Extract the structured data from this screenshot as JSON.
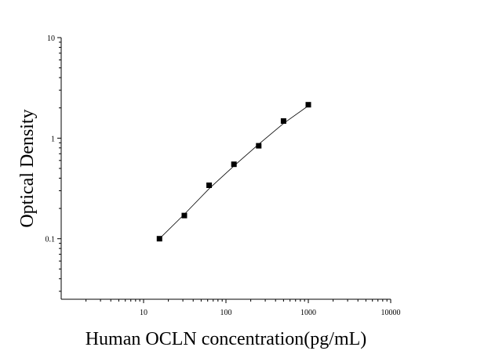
{
  "chart_data": {
    "type": "scatter",
    "title": "",
    "xlabel": "Human OCLN concentration(pg/mL)",
    "ylabel": "Optical Density",
    "x_scale": "log",
    "y_scale": "log",
    "xlim": [
      1,
      10000
    ],
    "ylim": [
      0.025,
      10
    ],
    "x_ticks": [
      10,
      100,
      1000,
      10000
    ],
    "x_tick_labels": [
      "10",
      "100",
      "1000",
      "10000"
    ],
    "y_ticks": [
      0.1,
      1,
      10
    ],
    "y_tick_labels": [
      "0.1",
      "1",
      "10"
    ],
    "grid": false,
    "legend": "none",
    "series": [
      {
        "x": [
          15.6,
          31.25,
          62.5,
          125,
          250,
          500,
          1000
        ],
        "y": [
          0.1,
          0.17,
          0.34,
          0.55,
          0.84,
          1.48,
          2.15
        ]
      }
    ],
    "fit_line": {
      "x": [
        15.6,
        31.25,
        62.5,
        125,
        250,
        500,
        1000
      ],
      "y": [
        0.1,
        0.175,
        0.315,
        0.53,
        0.87,
        1.4,
        2.1
      ]
    }
  }
}
